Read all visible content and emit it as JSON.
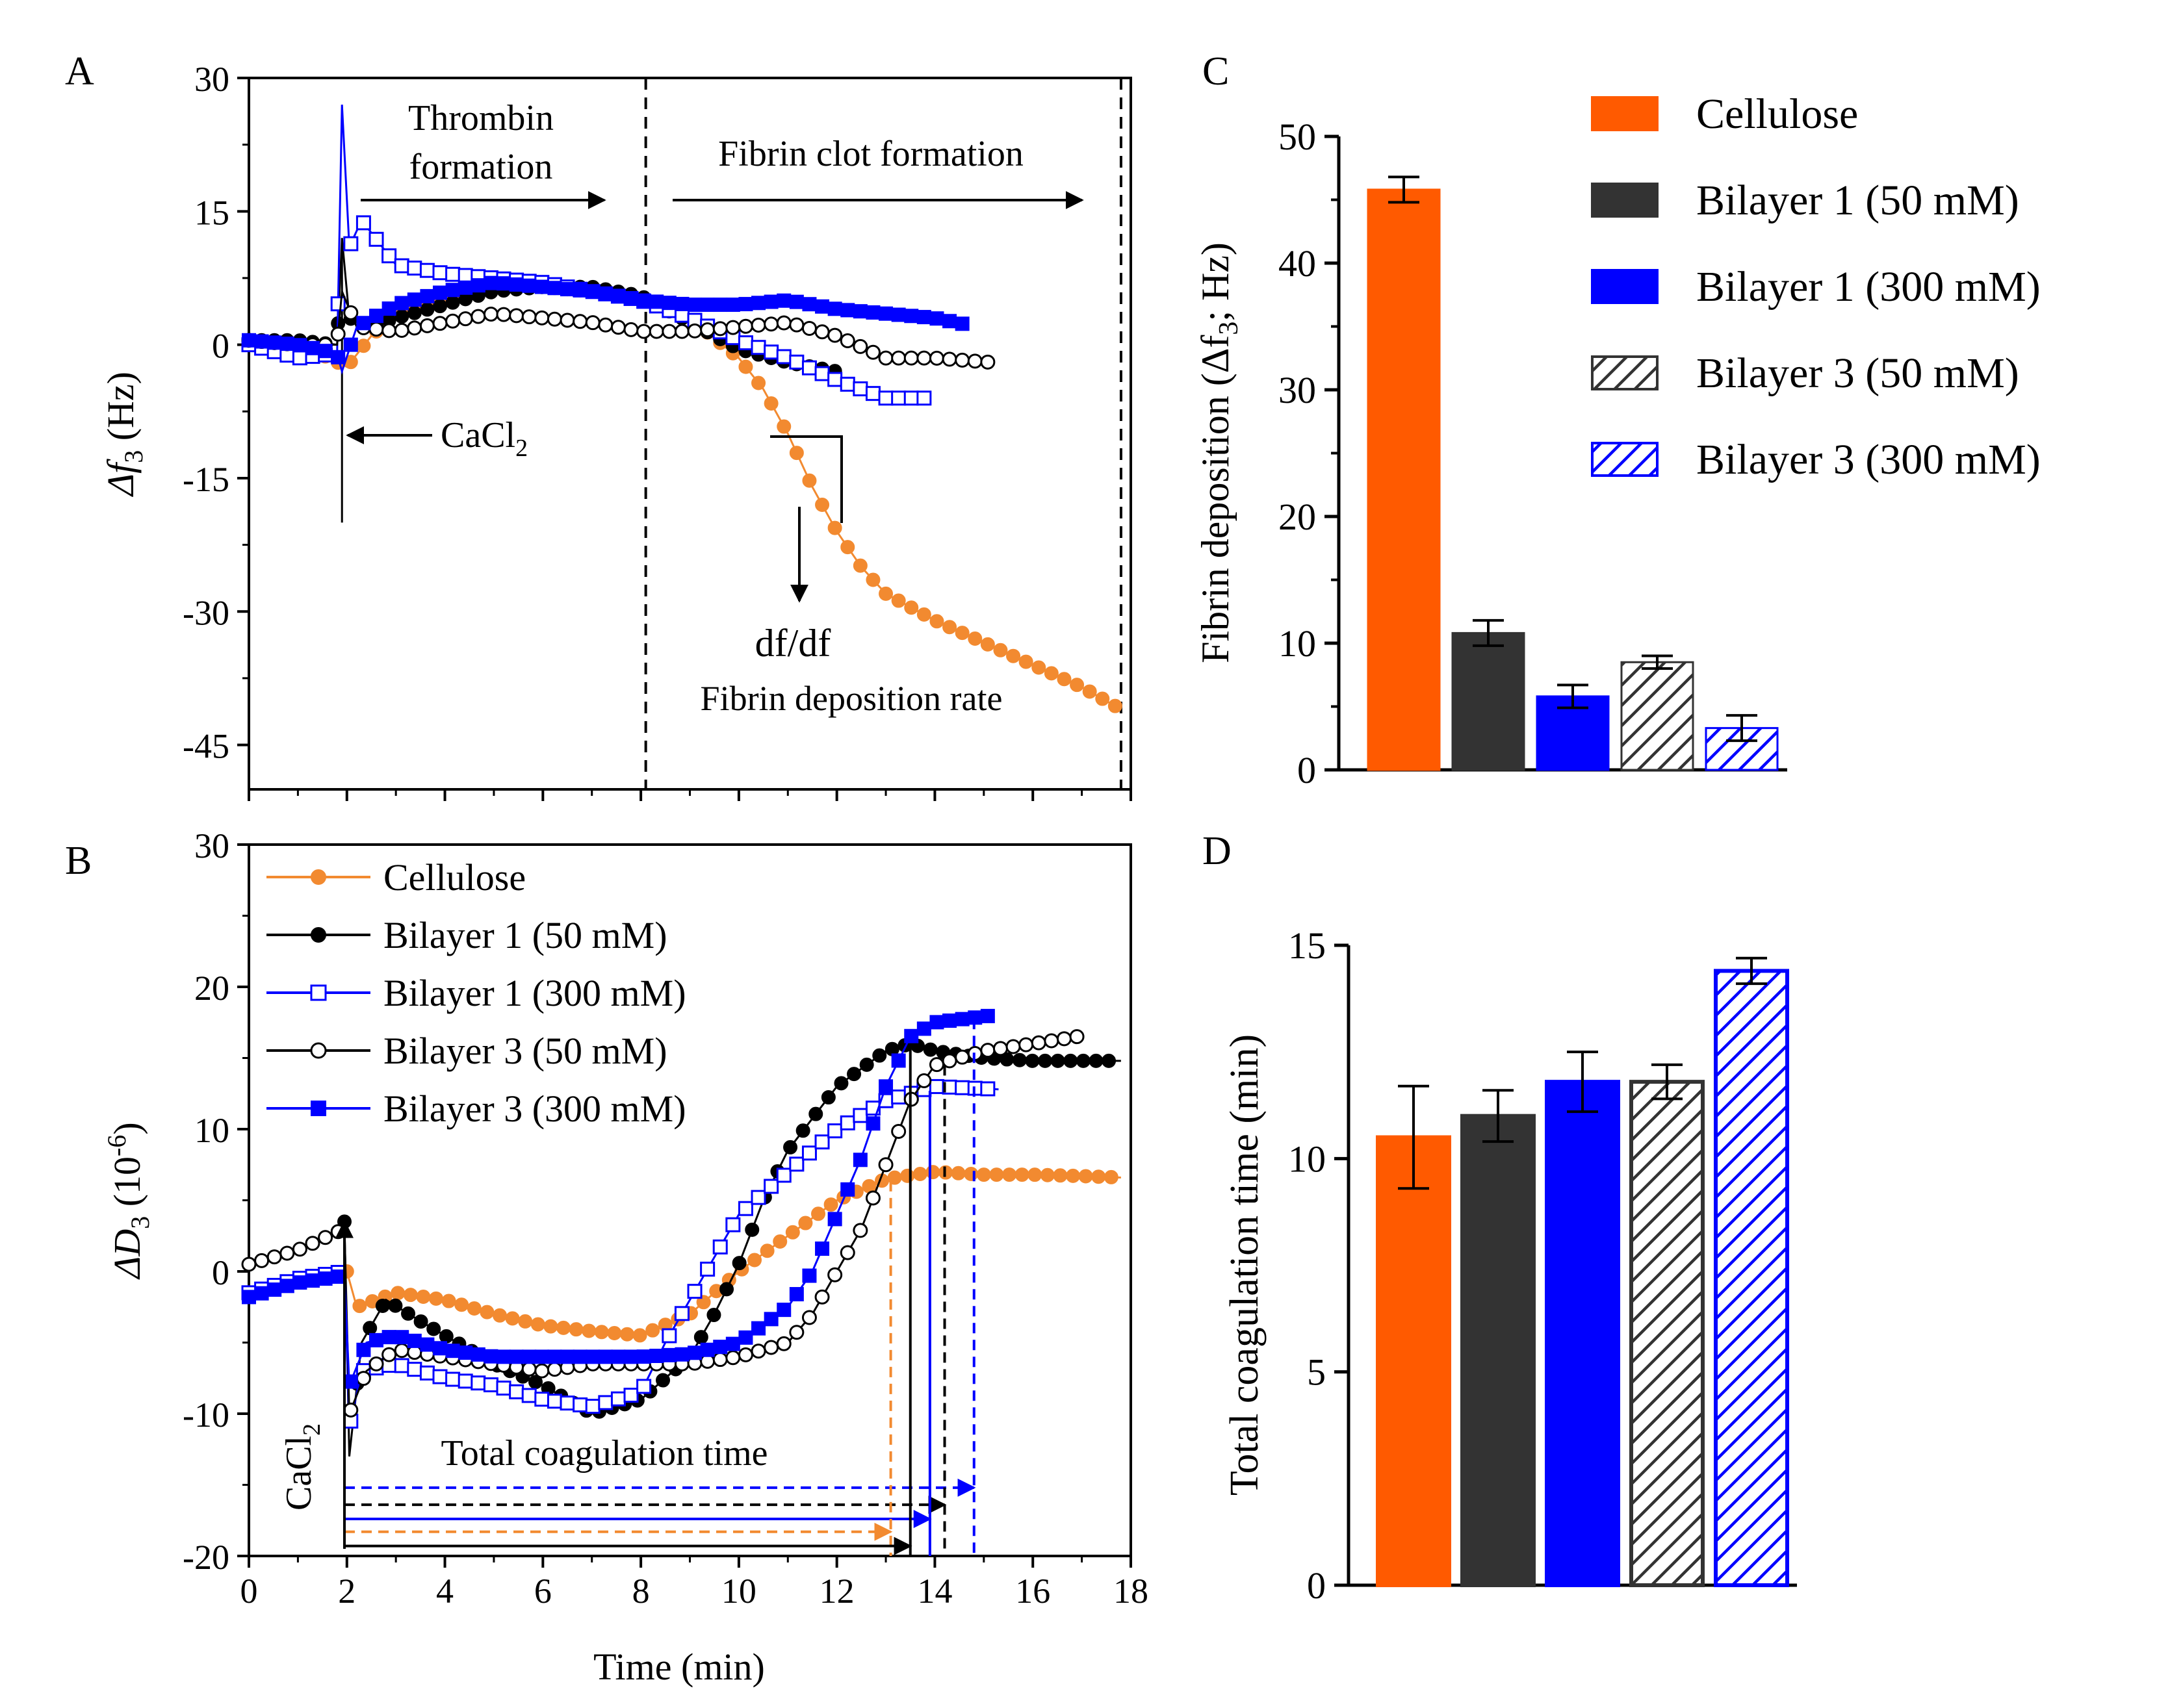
{
  "chart_data": [
    {
      "panel": "A",
      "type": "line",
      "ylabel_prefix": "Δf",
      "ylabel_sub": "3",
      "ylabel_suffix": " (Hz)",
      "ylim": [
        -50,
        30
      ],
      "xlim": [
        0,
        18
      ],
      "yticks": [
        "30",
        "15",
        "0",
        "-15",
        "-30",
        "-45"
      ],
      "ytick_values": [
        30,
        15,
        0,
        -15,
        -30,
        -45
      ],
      "annotations": {
        "thrombin_line1": "Thrombin",
        "thrombin_line2": "formation",
        "fibrin_clot": "Fibrin clot formation",
        "cacl2": "CaCl",
        "cacl2_sub": "2",
        "dfdf": "df/df",
        "rate": "Fibrin deposition rate"
      },
      "vlines_at_min": [
        8.1,
        17.8
      ],
      "series": [
        {
          "name": "Cellulose",
          "color": "#f28a30",
          "marker": "circle-filled",
          "x_end": 17.8,
          "points": [
            [
              0,
              0.5
            ],
            [
              1,
              0.2
            ],
            [
              2,
              -2.5
            ],
            [
              2.5,
              1
            ],
            [
              3,
              3.5
            ],
            [
              4,
              5.5
            ],
            [
              5,
              6.5
            ],
            [
              6,
              6.5
            ],
            [
              7,
              6
            ],
            [
              8,
              5
            ],
            [
              9,
              3
            ],
            [
              10,
              -1.5
            ],
            [
              10.5,
              -5
            ],
            [
              11,
              -10
            ],
            [
              11.5,
              -16
            ],
            [
              12,
              -21
            ],
            [
              12.5,
              -25
            ],
            [
              13,
              -28
            ],
            [
              14,
              -31
            ],
            [
              15,
              -33.5
            ],
            [
              16,
              -36
            ],
            [
              17,
              -38.5
            ],
            [
              17.8,
              -41
            ]
          ]
        },
        {
          "name": "Bilayer 1 (50 mM)",
          "color": "#000000",
          "marker": "circle-filled",
          "x_end": 12,
          "points": [
            [
              0,
              0.5
            ],
            [
              1,
              0.5
            ],
            [
              1.8,
              0
            ],
            [
              1.9,
              12
            ],
            [
              2.05,
              3
            ],
            [
              2.5,
              2
            ],
            [
              3,
              3
            ],
            [
              4,
              4.5
            ],
            [
              5,
              6
            ],
            [
              6,
              6.5
            ],
            [
              7,
              6.5
            ],
            [
              8,
              5.5
            ],
            [
              9,
              2.5
            ],
            [
              10,
              -0.5
            ],
            [
              11,
              -2
            ],
            [
              12,
              -3
            ]
          ]
        },
        {
          "name": "Bilayer 1 (300 mM)",
          "color": "#0000ff",
          "marker": "square-open",
          "x_end": 13.8,
          "points": [
            [
              0,
              0
            ],
            [
              1,
              -1.5
            ],
            [
              1.8,
              -1
            ],
            [
              1.9,
              27
            ],
            [
              2.05,
              11
            ],
            [
              2.3,
              14
            ],
            [
              3,
              9
            ],
            [
              4,
              8
            ],
            [
              5,
              7.5
            ],
            [
              6,
              7
            ],
            [
              7,
              6
            ],
            [
              8,
              5
            ],
            [
              9,
              3
            ],
            [
              10,
              0.5
            ],
            [
              11,
              -1.5
            ],
            [
              12,
              -4
            ],
            [
              13,
              -6
            ],
            [
              13.8,
              -6
            ]
          ]
        },
        {
          "name": "Bilayer 3 (50 mM)",
          "color": "#000000",
          "marker": "circle-open",
          "x_end": 15.2,
          "points": [
            [
              0,
              0.5
            ],
            [
              1,
              0
            ],
            [
              1.8,
              0
            ],
            [
              1.9,
              6
            ],
            [
              2.2,
              2
            ],
            [
              3,
              1.5
            ],
            [
              4,
              2.5
            ],
            [
              5,
              3.5
            ],
            [
              6,
              3
            ],
            [
              7,
              2.5
            ],
            [
              8,
              1.5
            ],
            [
              9,
              1.5
            ],
            [
              10,
              2
            ],
            [
              11,
              2.5
            ],
            [
              12,
              1
            ],
            [
              13,
              -1.5
            ],
            [
              14,
              -1.5
            ],
            [
              15.2,
              -2
            ]
          ]
        },
        {
          "name": "Bilayer 3 (300 mM)",
          "color": "#0000ff",
          "marker": "square-filled",
          "x_end": 14.7,
          "points": [
            [
              0,
              0.5
            ],
            [
              1,
              0
            ],
            [
              1.8,
              -1
            ],
            [
              1.9,
              -3
            ],
            [
              2.2,
              2
            ],
            [
              3,
              4.5
            ],
            [
              4,
              6
            ],
            [
              5,
              7
            ],
            [
              6,
              6.5
            ],
            [
              7,
              6
            ],
            [
              8,
              5
            ],
            [
              9,
              4.5
            ],
            [
              10,
              4.5
            ],
            [
              11,
              5
            ],
            [
              12,
              4
            ],
            [
              13,
              3.5
            ],
            [
              14,
              3
            ],
            [
              14.7,
              2.2
            ]
          ]
        }
      ]
    },
    {
      "panel": "B",
      "type": "line",
      "xlabel": "Time (min)",
      "ylabel_prefix": "ΔD",
      "ylabel_sub": "3",
      "ylabel_mid": " (10",
      "ylabel_sup": "-6",
      "ylabel_suffix": ")",
      "xlim": [
        0,
        18
      ],
      "ylim": [
        -20,
        30
      ],
      "xticks": [
        "0",
        "2",
        "4",
        "6",
        "8",
        "10",
        "12",
        "14",
        "16",
        "18"
      ],
      "xtick_values": [
        0,
        2,
        4,
        6,
        8,
        10,
        12,
        14,
        16,
        18
      ],
      "yticks": [
        "30",
        "20",
        "10",
        "0",
        "-10",
        "-20"
      ],
      "ytick_values": [
        30,
        20,
        10,
        0,
        -10,
        -20
      ],
      "annotations": {
        "total_coag": "Total coagulation time",
        "cacl2": "CaCl",
        "cacl2_sub": "2"
      },
      "legend": [
        "Cellulose",
        "Bilayer 1 (50 mM)",
        "Bilayer 1 (300 mM)",
        "Bilayer 3 (50 mM)",
        "Bilayer 3 (300 mM)"
      ],
      "coagulation_arrows": [
        {
          "series": "Bilayer 3 (300 mM)",
          "end": 14.8,
          "y": -15.2,
          "style": "dashed",
          "color": "#0000ff"
        },
        {
          "series": "Bilayer 3 (50 mM)",
          "end": 14.2,
          "y": -16.4,
          "style": "dashed",
          "color": "#000000"
        },
        {
          "series": "Bilayer 1 (300 mM)",
          "end": 13.9,
          "y": -17.4,
          "style": "solid",
          "color": "#0000ff"
        },
        {
          "series": "Cellulose",
          "end": 13.1,
          "y": -18.3,
          "style": "dashed",
          "color": "#f28a30"
        },
        {
          "series": "Bilayer 1 (50 mM)",
          "end": 13.5,
          "y": -19.3,
          "style": "solid",
          "color": "#000000"
        }
      ],
      "series": [
        {
          "name": "Cellulose",
          "color": "#f28a30",
          "marker": "circle-filled",
          "x_end": 17.8,
          "points": [
            [
              2,
              0
            ],
            [
              2.2,
              -2.5
            ],
            [
              3,
              -1.5
            ],
            [
              4,
              -2
            ],
            [
              5,
              -3
            ],
            [
              6,
              -3.8
            ],
            [
              7,
              -4.2
            ],
            [
              8,
              -4.5
            ],
            [
              9,
              -3
            ],
            [
              10,
              0
            ],
            [
              11,
              2.5
            ],
            [
              12,
              5
            ],
            [
              13,
              6.5
            ],
            [
              14,
              7
            ],
            [
              15,
              6.8
            ],
            [
              16,
              6.8
            ],
            [
              17,
              6.7
            ],
            [
              17.8,
              6.6
            ]
          ]
        },
        {
          "name": "Bilayer 1 (50 mM)",
          "color": "#000000",
          "marker": "circle-filled",
          "x_end": 17.8,
          "points": [
            [
              1.95,
              3.5
            ],
            [
              2.05,
              -13
            ],
            [
              2.3,
              -5
            ],
            [
              2.8,
              -2
            ],
            [
              3.5,
              -3.5
            ],
            [
              4,
              -4.5
            ],
            [
              5,
              -6.5
            ],
            [
              6,
              -8
            ],
            [
              7,
              -10
            ],
            [
              8,
              -9
            ],
            [
              9,
              -6
            ],
            [
              9.5,
              -3
            ],
            [
              10,
              0.5
            ],
            [
              10.5,
              5
            ],
            [
              11,
              8.5
            ],
            [
              12,
              13
            ],
            [
              13,
              15.5
            ],
            [
              13.5,
              16
            ],
            [
              14,
              15.5
            ],
            [
              15,
              15
            ],
            [
              16,
              14.8
            ],
            [
              17,
              14.8
            ],
            [
              17.8,
              14.8
            ]
          ]
        },
        {
          "name": "Bilayer 1 (300 mM)",
          "color": "#0000ff",
          "marker": "square-open",
          "x_end": 15.3,
          "points": [
            [
              0,
              -1.5
            ],
            [
              1,
              -0.5
            ],
            [
              1.95,
              0
            ],
            [
              2.05,
              -11
            ],
            [
              2.3,
              -7
            ],
            [
              3,
              -6.5
            ],
            [
              4,
              -7.5
            ],
            [
              5,
              -8
            ],
            [
              6,
              -9
            ],
            [
              7,
              -9.5
            ],
            [
              8,
              -8.5
            ],
            [
              8.5,
              -5
            ],
            [
              9,
              -2
            ],
            [
              10,
              4
            ],
            [
              11,
              7
            ],
            [
              12,
              10
            ],
            [
              13,
              12
            ],
            [
              14,
              13
            ],
            [
              15.3,
              12.8
            ]
          ]
        },
        {
          "name": "Bilayer 3 (50 mM)",
          "color": "#000000",
          "marker": "circle-open",
          "x_end": 16.9,
          "points": [
            [
              0,
              0.5
            ],
            [
              1,
              1.5
            ],
            [
              1.95,
              3
            ],
            [
              2.05,
              -10
            ],
            [
              2.4,
              -7
            ],
            [
              3,
              -5.5
            ],
            [
              4,
              -6
            ],
            [
              5,
              -6.5
            ],
            [
              6,
              -7
            ],
            [
              7,
              -6.5
            ],
            [
              8,
              -6.5
            ],
            [
              9,
              -6.5
            ],
            [
              10,
              -6
            ],
            [
              11,
              -5
            ],
            [
              11.5,
              -3
            ],
            [
              12,
              0
            ],
            [
              12.5,
              3
            ],
            [
              13,
              7.5
            ],
            [
              13.5,
              12
            ],
            [
              14,
              14.5
            ],
            [
              15,
              15.5
            ],
            [
              16,
              16
            ],
            [
              16.9,
              16.5
            ]
          ]
        },
        {
          "name": "Bilayer 3 (300 mM)",
          "color": "#0000ff",
          "marker": "square-filled",
          "x_end": 15.2,
          "points": [
            [
              0,
              -1.8
            ],
            [
              1,
              -0.8
            ],
            [
              1.95,
              -0.3
            ],
            [
              2.05,
              -8
            ],
            [
              2.4,
              -5
            ],
            [
              3,
              -4.5
            ],
            [
              4,
              -5.5
            ],
            [
              5,
              -6
            ],
            [
              6,
              -6
            ],
            [
              7,
              -6
            ],
            [
              8,
              -6
            ],
            [
              9,
              -5.8
            ],
            [
              10,
              -5
            ],
            [
              11,
              -2.5
            ],
            [
              11.5,
              0
            ],
            [
              12,
              4
            ],
            [
              12.5,
              8
            ],
            [
              13,
              13
            ],
            [
              13.5,
              16.5
            ],
            [
              14,
              17.5
            ],
            [
              15.2,
              18
            ]
          ]
        }
      ]
    },
    {
      "panel": "C",
      "type": "bar",
      "ylabel_prefix": "Fibrin deposition (Δf",
      "ylabel_sub": "3",
      "ylabel_suffix": "; Hz)",
      "ylim": [
        0,
        50
      ],
      "yticks": [
        "0",
        "10",
        "20",
        "30",
        "40",
        "50"
      ],
      "ytick_values": [
        0,
        10,
        20,
        30,
        40,
        50
      ],
      "categories": [
        "Cellulose",
        "Bilayer 1 (50 mM)",
        "Bilayer 1 (300 mM)",
        "Bilayer 3 (50 mM)",
        "Bilayer 3 (300 mM)"
      ],
      "values": [
        45.8,
        10.8,
        5.8,
        8.5,
        3.3
      ],
      "errors": [
        1.0,
        1.0,
        0.9,
        0.5,
        1.0
      ],
      "legend_title": "",
      "legend": [
        "Cellulose",
        "Bilayer 1 (50 mM)",
        "Bilayer 1 (300 mM)",
        "Bilayer 3 (50 mM)",
        "Bilayer 3 (300 mM)"
      ]
    },
    {
      "panel": "D",
      "type": "bar",
      "ylabel": "Total coagulation time (min)",
      "ylim": [
        0,
        15
      ],
      "yticks": [
        "0",
        "5",
        "10",
        "15"
      ],
      "ytick_values": [
        0,
        5,
        10,
        15
      ],
      "categories": [
        "Cellulose",
        "Bilayer 1 (50 mM)",
        "Bilayer 1 (300 mM)",
        "Bilayer 3 (50 mM)",
        "Bilayer 3 (300 mM)"
      ],
      "values": [
        10.5,
        11.0,
        11.8,
        11.8,
        14.4
      ],
      "errors": [
        1.2,
        0.6,
        0.7,
        0.4,
        0.3
      ]
    }
  ],
  "panel_labels": {
    "a": "A",
    "b": "B",
    "c": "C",
    "d": "D"
  },
  "styles": {
    "Cellulose": {
      "fill": "#ff5a00",
      "pattern": false
    },
    "Bilayer 1 (50 mM)": {
      "fill": "#333333",
      "pattern": false
    },
    "Bilayer 1 (300 mM)": {
      "fill": "#0000ff",
      "pattern": false
    },
    "Bilayer 3 (50 mM)": {
      "fill": "#333333",
      "pattern": true
    },
    "Bilayer 3 (300 mM)": {
      "fill": "#0000ff",
      "pattern": true
    }
  }
}
